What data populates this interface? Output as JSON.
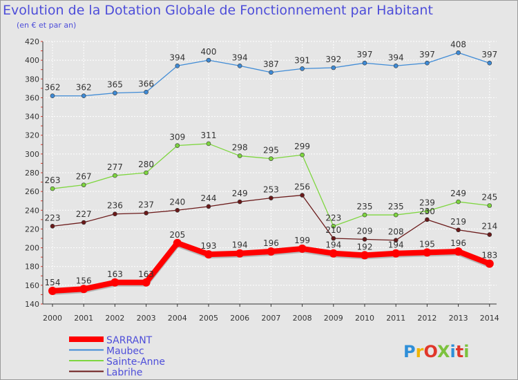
{
  "chart_data": {
    "type": "line",
    "title": "Evolution de la Dotation Globale de Fonctionnement par Habitant",
    "subtitle": "(en € et par an)",
    "xlabel": "",
    "ylabel": "",
    "categories": [
      "2000",
      "2001",
      "2002",
      "2003",
      "2004",
      "2005",
      "2006",
      "2007",
      "2008",
      "2009",
      "2010",
      "2011",
      "2012",
      "2013",
      "2014"
    ],
    "ylim": [
      140,
      420
    ],
    "yticks": [
      140,
      160,
      180,
      200,
      220,
      240,
      260,
      280,
      300,
      320,
      340,
      360,
      380,
      400,
      420
    ],
    "grid": true,
    "legend_position": "bottom-left",
    "series": [
      {
        "name": "SARRANT",
        "color": "#ff0000",
        "values": [
          154,
          156,
          163,
          163,
          205,
          193,
          194,
          196,
          199,
          194,
          192,
          194,
          195,
          196,
          183
        ],
        "labels": [
          "154",
          "156",
          "163",
          "163",
          "205",
          "193",
          "194",
          "196",
          "199",
          "194",
          "192",
          "194",
          "195",
          "196",
          "183"
        ]
      },
      {
        "name": "Maubec",
        "color": "#3f8bd6",
        "values": [
          362,
          362,
          365,
          366,
          394,
          400,
          394,
          387,
          391,
          392,
          397,
          394,
          397,
          408,
          397
        ],
        "labels": [
          "362",
          "362",
          "365",
          "366",
          "394",
          "400",
          "394",
          "387",
          "391",
          "392",
          "397",
          "394",
          "397",
          "408",
          "397"
        ]
      },
      {
        "name": "Sainte-Anne",
        "color": "#7ed63f",
        "values": [
          263,
          267,
          277,
          280,
          309,
          311,
          298,
          295,
          299,
          223,
          235,
          235,
          239,
          249,
          245
        ],
        "labels": [
          "263",
          "267",
          "277",
          "280",
          "309",
          "311",
          "298",
          "295",
          "299",
          "223",
          "235",
          "235",
          "239",
          "249",
          "245"
        ]
      },
      {
        "name": "Labrihe",
        "color": "#6b1a1a",
        "values": [
          223,
          227,
          236,
          237,
          240,
          244,
          249,
          253,
          256,
          210,
          209,
          208,
          230,
          219,
          214
        ],
        "labels": [
          "223",
          "227",
          "236",
          "237",
          "240",
          "244",
          "249",
          "253",
          "256",
          "210",
          "209",
          "208",
          "230",
          "219",
          "214"
        ]
      }
    ]
  },
  "branding": {
    "logo_text": "PrOXiti",
    "logo_colors": [
      "#2f8fd8",
      "#f0b400",
      "#e0372b",
      "#7cc23d",
      "#2f8fd8",
      "#e0372b",
      "#7cc23d"
    ]
  }
}
